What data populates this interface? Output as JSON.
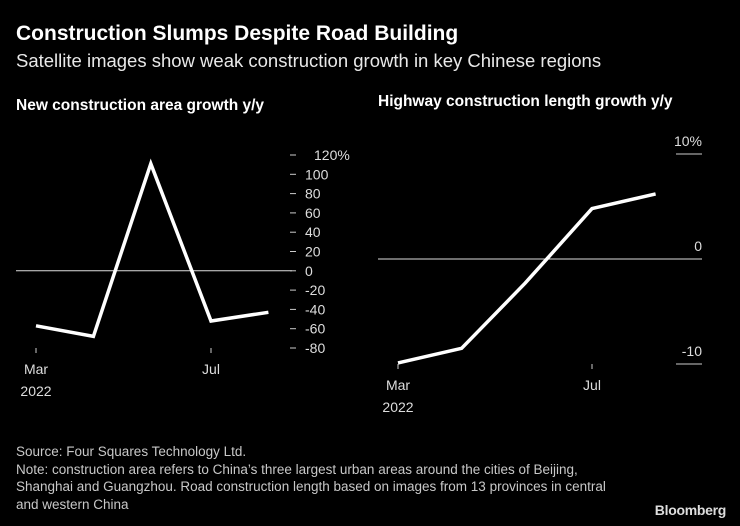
{
  "header": {
    "title": "Construction Slumps Despite Road Building",
    "subtitle": "Satellite images show weak construction growth in key Chinese regions"
  },
  "chart_data": [
    {
      "type": "line",
      "title": "New construction area growth y/y",
      "x": [
        "2022-03-01",
        "2022-04-10",
        "2022-05-20",
        "2022-07-01",
        "2022-08-10"
      ],
      "values": [
        -57,
        -68,
        111,
        -52,
        -43
      ],
      "ylim": [
        -80,
        120
      ],
      "yticks": [
        "120%",
        "100",
        "80",
        "60",
        "40",
        "20",
        "0",
        "-20",
        "-40",
        "-60",
        "-80"
      ],
      "ytick_values": [
        120,
        100,
        80,
        60,
        40,
        20,
        0,
        -20,
        -40,
        -60,
        -80
      ],
      "xticks": [
        {
          "label": "Mar",
          "sub": "2022",
          "date": "2022-03-01"
        },
        {
          "label": "Jul",
          "sub": "",
          "date": "2022-07-01"
        }
      ],
      "zero_line": true,
      "grid": false,
      "line_color": "#ffffff"
    },
    {
      "type": "line",
      "title": "Highway construction length growth y/y",
      "x": [
        "2022-03-01",
        "2022-04-10",
        "2022-05-20",
        "2022-07-01",
        "2022-08-10"
      ],
      "values": [
        -9.9,
        -8.5,
        -2.3,
        4.8,
        6.2
      ],
      "ylim": [
        -10,
        10
      ],
      "yticks": [
        "10%",
        "0",
        "-10"
      ],
      "ytick_values": [
        10,
        0,
        -10
      ],
      "xticks": [
        {
          "label": "Mar",
          "sub": "2022",
          "date": "2022-03-01"
        },
        {
          "label": "Jul",
          "sub": "",
          "date": "2022-07-01"
        }
      ],
      "zero_line": true,
      "grid": false,
      "line_color": "#ffffff"
    }
  ],
  "footer": {
    "source": "Source: Four Squares Technology Ltd.",
    "note": "Note: construction area refers to China’s three largest urban areas around the cities of Beijing, Shanghai and Guangzhou. Road construction length based on images from 13 provinces in central and western China",
    "logo": "Bloomberg"
  }
}
